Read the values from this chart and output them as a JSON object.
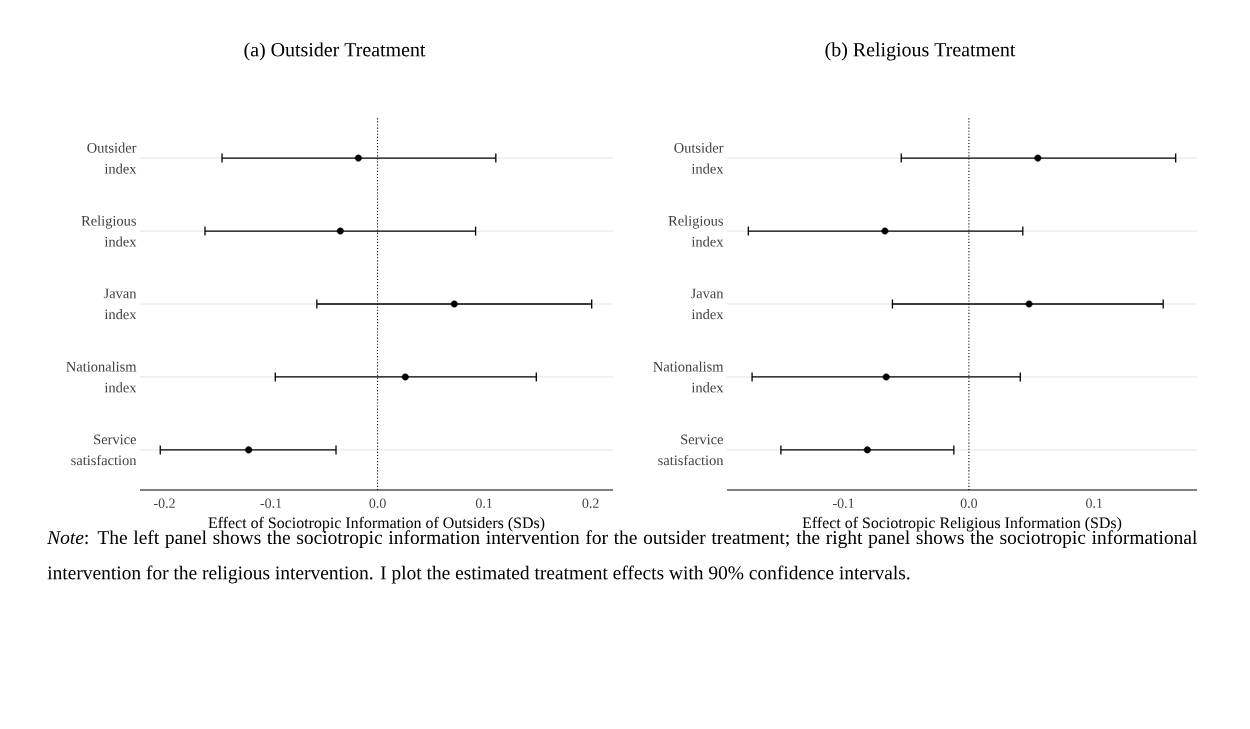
{
  "chart_data": [
    {
      "type": "scatter",
      "orientation": "horizontal",
      "title": "(a) Outsider Treatment",
      "xlabel": "Effect of Sociotropic Information of Outsiders (SDs)",
      "categories": [
        "Outsider index",
        "Religious index",
        "Javan index",
        "Nationalism index",
        "Service satisfaction"
      ],
      "series": [
        {
          "color": "#000000",
          "values": [
            -0.018,
            -0.035,
            0.072,
            0.026,
            -0.121
          ],
          "errors": [
            [
              -0.146,
              0.111
            ],
            [
              -0.162,
              0.092
            ],
            [
              -0.057,
              0.201
            ],
            [
              -0.096,
              0.149
            ],
            [
              -0.204,
              -0.039
            ]
          ]
        }
      ],
      "xlim": [
        -0.223,
        0.221
      ],
      "xticks": [
        -0.2,
        -0.1,
        {
          "value": 0,
          "label": "0.0"
        },
        0.1,
        0.2
      ],
      "ref_lines": [
        {
          "axis": "x",
          "value": 0,
          "line_style": "dotted",
          "color": "#000000"
        }
      ],
      "grid": "y",
      "marker": "circle",
      "annotations": [
        "*Note*: The left panel shows the sociotropic information intervention for the outsider treatment; the right panel shows the sociotropic informational intervention for the religious intervention. I plot the estimated treatment effects with 90% confidence intervals."
      ]
    },
    {
      "type": "scatter",
      "orientation": "horizontal",
      "title": "(b) Religious Treatment",
      "xlabel": "Effect of Sociotropic Religious Information (SDs)",
      "categories": [
        "Outsider index",
        "Religious index",
        "Javan index",
        "Nationalism index",
        "Service satisfaction"
      ],
      "series": [
        {
          "color": "#000000",
          "values": [
            0.055,
            -0.067,
            0.048,
            -0.066,
            -0.081
          ],
          "errors": [
            [
              -0.054,
              0.165
            ],
            [
              -0.176,
              0.043
            ],
            [
              -0.061,
              0.155
            ],
            [
              -0.173,
              0.041
            ],
            [
              -0.15,
              -0.012
            ]
          ]
        }
      ],
      "xlim": [
        -0.193,
        0.182
      ],
      "xticks": [
        -0.1,
        {
          "value": 0,
          "label": "0.0"
        },
        0.1
      ],
      "ref_lines": [
        {
          "axis": "x",
          "value": 0,
          "line_style": "dotted",
          "color": "#000000"
        }
      ],
      "grid": "y",
      "marker": "circle"
    }
  ]
}
